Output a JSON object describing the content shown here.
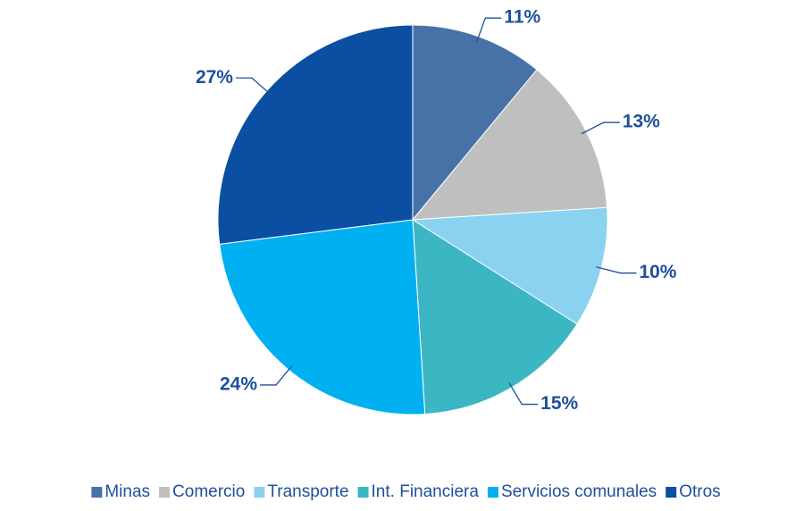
{
  "chart_data": {
    "type": "pie",
    "categories": [
      "Minas",
      "Comercio",
      "Transporte",
      "Int. Financiera",
      "Servicios comunales",
      "Otros"
    ],
    "values": [
      11,
      13,
      10,
      15,
      24,
      27
    ],
    "value_labels": [
      "11%",
      "13%",
      "10%",
      "15%",
      "24%",
      "27%"
    ],
    "colors": [
      "#4672a8",
      "#bfbfbf",
      "#8ad2f0",
      "#3db6c3",
      "#00b0f0",
      "#0b4fa3"
    ],
    "legend": "bottom"
  }
}
